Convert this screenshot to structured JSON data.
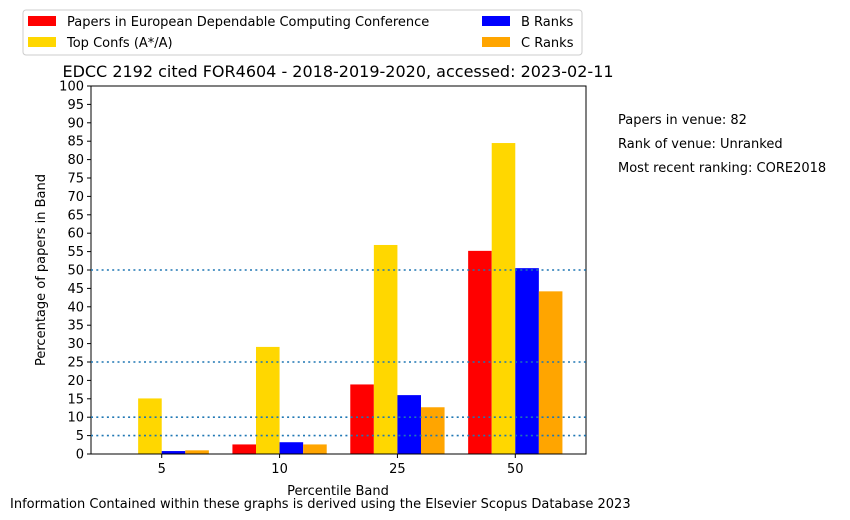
{
  "chart_data": {
    "type": "bar",
    "title": "EDCC 2192 cited FOR4604 - 2018-2019-2020, accessed: 2023-02-11",
    "xlabel": "Percentile Band",
    "ylabel": "Percentage of papers in Band",
    "categories": [
      "5",
      "10",
      "25",
      "50"
    ],
    "ylim": [
      0,
      100
    ],
    "yticks": [
      0,
      5,
      10,
      15,
      20,
      25,
      30,
      35,
      40,
      45,
      50,
      55,
      60,
      65,
      70,
      75,
      80,
      85,
      90,
      95,
      100
    ],
    "reference_lines": [
      5,
      10,
      25,
      50
    ],
    "reference_line_color": "#1f77b4",
    "series": [
      {
        "name": "Papers in European Dependable Computing Conference",
        "color": "#ff0000",
        "values": [
          0,
          2.6,
          18.9,
          55.2
        ]
      },
      {
        "name": "Top Confs (A*/A)",
        "color": "#ffd700",
        "values": [
          15.1,
          29.1,
          56.8,
          84.5
        ]
      },
      {
        "name": "B Ranks",
        "color": "#0000ff",
        "values": [
          0.8,
          3.2,
          16.0,
          50.5
        ]
      },
      {
        "name": "C Ranks",
        "color": "#ffa500",
        "values": [
          1.0,
          2.6,
          12.7,
          44.2
        ]
      }
    ],
    "legend": {
      "placement": "top-left",
      "columns": 2
    },
    "grid": false
  },
  "side_info": [
    "Papers in venue: 82",
    "Rank of venue: Unranked",
    "Most recent ranking: CORE2018"
  ],
  "footer": "Information Contained within these graphs is derived using the Elsevier Scopus Database 2023"
}
